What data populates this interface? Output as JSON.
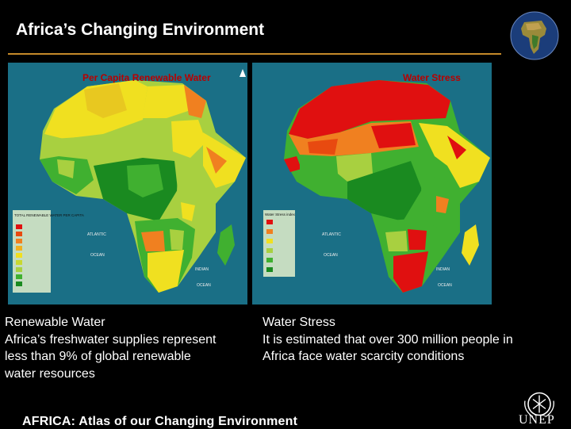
{
  "slide": {
    "title": "Africa’s Changing Environment",
    "footer": "AFRICA: Atlas of our Changing Environment",
    "logo_text": "UNEP"
  },
  "maps": {
    "left": {
      "title": "Per Capita Renewable Water",
      "legend_title": "TOTAL RENEWABLE WATER PER CAPITA",
      "labels": [
        "ATLANTIC",
        "OCEAN",
        "INDIAN",
        "OCEAN"
      ]
    },
    "right": {
      "title": "Water Stress",
      "legend_title": "Water Stress index",
      "labels": [
        "ATLANTIC",
        "OCEAN",
        "INDIAN",
        "OCEAN"
      ]
    }
  },
  "captions": {
    "left": {
      "heading": "Renewable Water",
      "lines": [
        "Africa’s freshwater supplies represent",
        "less than 9% of global renewable",
        "water resources"
      ]
    },
    "right": {
      "heading": "Water Stress",
      "lines": [
        "It is estimated that over 300 million people in",
        "Africa face water scarcity conditions"
      ]
    }
  },
  "colors": {
    "accent_rule": "#c58a2a",
    "ocean": "#1a6f86",
    "map_title": "#b80000",
    "red": "#e01010",
    "orange": "#f08020",
    "yellow": "#f0e020",
    "lightgreen": "#a8d040",
    "green": "#40b030",
    "darkgreen": "#1a8a20"
  }
}
